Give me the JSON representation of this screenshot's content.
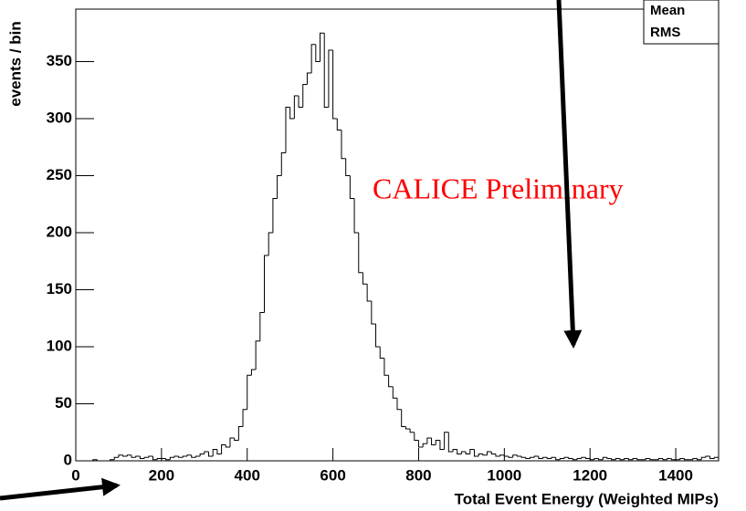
{
  "chart_data": {
    "type": "histogram",
    "ylabel": "events / bin",
    "xlabel": "Total Event Energy (Weighted MIPs)",
    "annotation": "CALICE Preliminary",
    "stats": [
      "Mean",
      "RMS"
    ],
    "bins": [
      0,
      10,
      20,
      30,
      40,
      50,
      60,
      70,
      80,
      90,
      100,
      110,
      120,
      130,
      140,
      150,
      160,
      170,
      180,
      190,
      200,
      210,
      220,
      230,
      240,
      250,
      260,
      270,
      280,
      290,
      300,
      310,
      320,
      330,
      340,
      350,
      360,
      370,
      380,
      390,
      400,
      410,
      420,
      430,
      440,
      450,
      460,
      470,
      480,
      490,
      500,
      510,
      520,
      530,
      540,
      550,
      560,
      570,
      580,
      590,
      600,
      610,
      620,
      630,
      640,
      650,
      660,
      670,
      680,
      690,
      700,
      710,
      720,
      730,
      740,
      750,
      760,
      770,
      780,
      790,
      800,
      810,
      820,
      830,
      840,
      850,
      860,
      870,
      880,
      890,
      900,
      910,
      920,
      930,
      940,
      950,
      960,
      970,
      980,
      990,
      1000,
      1010,
      1020,
      1030,
      1040,
      1050,
      1060,
      1070,
      1080,
      1090,
      1100,
      1110,
      1120,
      1130,
      1140,
      1150,
      1160,
      1170,
      1180,
      1190,
      1200,
      1210,
      1220,
      1230,
      1240,
      1250,
      1260,
      1270,
      1280,
      1290,
      1300,
      1310,
      1320,
      1330,
      1340,
      1350,
      1360,
      1370,
      1380,
      1390,
      1400,
      1410,
      1420,
      1430,
      1440,
      1450,
      1460,
      1470,
      1480,
      1490,
      1500
    ],
    "values": [
      0,
      0,
      0,
      0,
      1,
      0,
      0,
      0,
      1,
      3,
      5,
      4,
      5,
      3,
      4,
      2,
      3,
      4,
      1,
      2,
      2,
      1,
      3,
      4,
      3,
      4,
      5,
      3,
      4,
      6,
      8,
      4,
      10,
      6,
      14,
      12,
      20,
      18,
      30,
      45,
      75,
      80,
      105,
      130,
      180,
      200,
      230,
      250,
      270,
      310,
      300,
      320,
      310,
      330,
      340,
      365,
      350,
      375,
      310,
      360,
      300,
      290,
      265,
      250,
      230,
      200,
      165,
      155,
      140,
      120,
      100,
      90,
      75,
      65,
      55,
      45,
      30,
      28,
      25,
      18,
      12,
      15,
      20,
      14,
      18,
      10,
      25,
      8,
      10,
      6,
      8,
      6,
      10,
      4,
      6,
      5,
      8,
      6,
      4,
      5,
      4,
      3,
      5,
      4,
      3,
      2,
      3,
      4,
      2,
      3,
      2,
      3,
      1,
      2,
      3,
      2,
      1,
      2,
      3,
      2,
      1,
      2,
      1,
      3,
      2,
      1,
      2,
      1,
      2,
      1,
      2,
      1,
      1,
      2,
      1,
      1,
      2,
      1,
      2,
      1,
      1,
      2,
      1,
      1,
      2,
      1,
      3,
      4,
      2,
      3
    ],
    "color": "#000000",
    "xlim": [
      0,
      1500
    ],
    "ylim": [
      0,
      396
    ],
    "xticks": [
      0,
      200,
      400,
      600,
      800,
      1000,
      1200,
      1400
    ],
    "yticks": [
      0,
      50,
      100,
      150,
      200,
      250,
      300,
      350
    ]
  }
}
